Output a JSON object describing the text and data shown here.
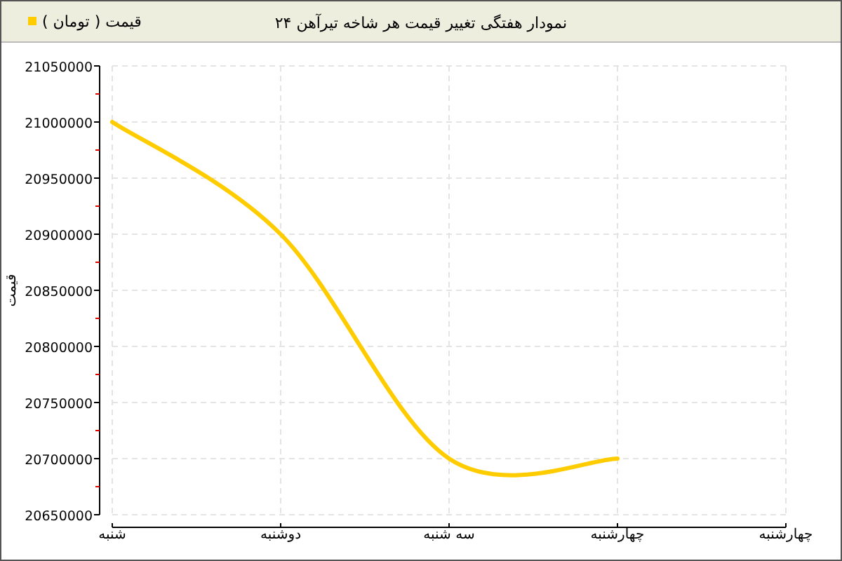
{
  "chart_data": {
    "type": "line",
    "title": "نمودار هفتگی تغییر قیمت هر شاخه تیرآهن ۲۴",
    "ylabel": "قیمت",
    "categories": [
      "شنبه",
      "دوشنبه",
      "سه شنبه",
      "چهارشنبه",
      "چهارشنبه"
    ],
    "series": [
      {
        "name": "قیمت ( تومان )",
        "color": "#ffcc00",
        "values": [
          21000000,
          20900000,
          20700000,
          20700000,
          null
        ]
      }
    ],
    "ylim": [
      20650000,
      21050000
    ],
    "yticks": [
      20650000,
      20700000,
      20750000,
      20800000,
      20850000,
      20900000,
      20950000,
      21000000,
      21050000
    ],
    "grid": true,
    "legend": "top left",
    "marker": "none"
  }
}
